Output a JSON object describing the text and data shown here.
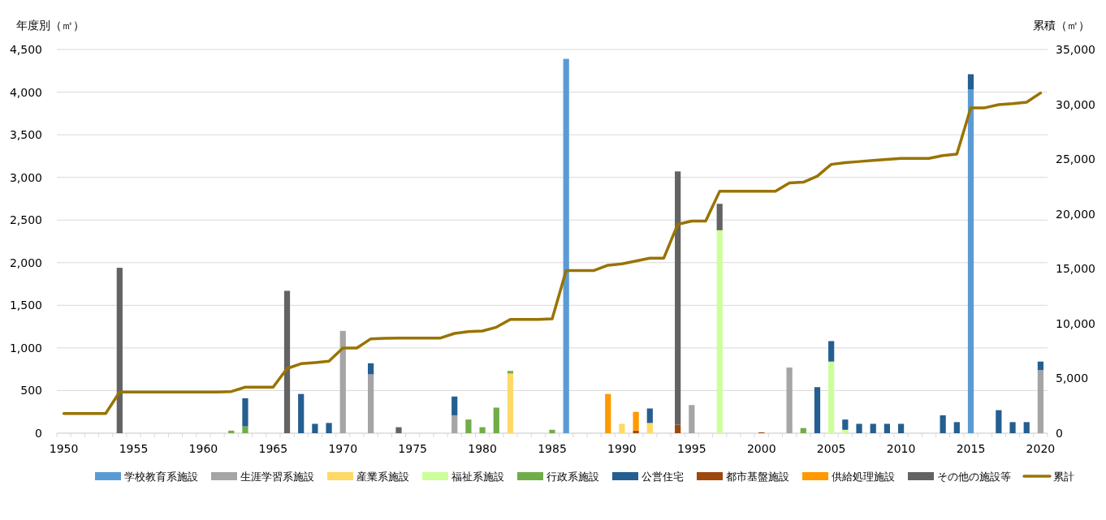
{
  "chart_data": {
    "type": "bar",
    "stacked": true,
    "ylabel": "年度別（㎡）",
    "y2label": "累積（㎡）",
    "categories": [
      "1950",
      null,
      null,
      null,
      null,
      "1955",
      null,
      null,
      null,
      null,
      "1960",
      null,
      null,
      null,
      null,
      "1965",
      null,
      null,
      null,
      null,
      "1970",
      null,
      null,
      null,
      null,
      "1975",
      null,
      null,
      null,
      null,
      "1980",
      null,
      null,
      null,
      null,
      "1985",
      null,
      null,
      null,
      null,
      "1990",
      null,
      null,
      null,
      null,
      "1995",
      null,
      null,
      null,
      null,
      "2000",
      null,
      null,
      null,
      null,
      "2005",
      null,
      null,
      null,
      null,
      "2010",
      null,
      null,
      null,
      null,
      "2015",
      null,
      null,
      null,
      null,
      "2020"
    ],
    "ylim": [
      0,
      4500
    ],
    "yticks": [
      0,
      {
        "value": 500,
        "label": "500"
      },
      {
        "value": 1000,
        "label": "1,000"
      },
      {
        "value": 1500,
        "label": "1,500"
      },
      {
        "value": 2000,
        "label": "2,000"
      },
      {
        "value": 2500,
        "label": "2,500"
      },
      {
        "value": 3000,
        "label": "3,000"
      },
      {
        "value": 3500,
        "label": "3,500"
      },
      {
        "value": 4000,
        "label": "4,000"
      },
      {
        "value": 4500,
        "label": "4,500"
      }
    ],
    "y2lim": [
      0,
      35000
    ],
    "y2ticks": [
      0,
      {
        "value": 5000,
        "label": "5,000"
      },
      {
        "value": 10000,
        "label": "10,000"
      },
      {
        "value": 15000,
        "label": "15,000"
      },
      {
        "value": 20000,
        "label": "20,000"
      },
      {
        "value": 25000,
        "label": "25,000"
      },
      {
        "value": 30000,
        "label": "30,000"
      },
      {
        "value": 35000,
        "label": "35,000"
      }
    ],
    "grid": "y",
    "legend": "bottom",
    "series": [
      {
        "name": "学校教育系施設",
        "color": "#5b9bd5",
        "values": [
          null,
          null,
          null,
          null,
          null,
          null,
          null,
          null,
          null,
          null,
          null,
          null,
          null,
          null,
          null,
          null,
          null,
          null,
          null,
          null,
          null,
          null,
          null,
          null,
          null,
          null,
          null,
          null,
          null,
          null,
          null,
          null,
          null,
          null,
          null,
          null,
          4390,
          null,
          null,
          null,
          null,
          null,
          null,
          null,
          null,
          null,
          null,
          null,
          null,
          null,
          null,
          null,
          null,
          null,
          null,
          null,
          null,
          null,
          null,
          null,
          null,
          null,
          null,
          null,
          null,
          4030,
          null,
          null,
          null,
          null,
          null
        ]
      },
      {
        "name": "生涯学習系施設",
        "color": "#a5a5a5",
        "values": [
          null,
          null,
          null,
          null,
          null,
          null,
          null,
          null,
          null,
          null,
          null,
          null,
          null,
          null,
          null,
          null,
          null,
          null,
          null,
          null,
          1200,
          null,
          690,
          null,
          null,
          null,
          null,
          null,
          210,
          null,
          null,
          null,
          null,
          null,
          null,
          null,
          null,
          null,
          null,
          null,
          null,
          null,
          null,
          null,
          null,
          330,
          null,
          null,
          null,
          null,
          null,
          null,
          770,
          null,
          null,
          null,
          null,
          null,
          null,
          null,
          null,
          null,
          null,
          null,
          null,
          null,
          null,
          null,
          null,
          null,
          740
        ]
      },
      {
        "name": "産業系施設",
        "color": "#ffd966",
        "values": [
          null,
          null,
          null,
          null,
          null,
          null,
          null,
          null,
          null,
          null,
          null,
          null,
          null,
          null,
          null,
          null,
          null,
          null,
          null,
          null,
          null,
          null,
          null,
          null,
          null,
          null,
          null,
          null,
          null,
          null,
          null,
          null,
          700,
          null,
          null,
          null,
          null,
          null,
          null,
          null,
          110,
          null,
          120,
          null,
          null,
          null,
          null,
          null,
          null,
          null,
          null,
          null,
          null,
          null,
          null,
          null,
          null,
          null,
          null,
          null,
          null,
          null,
          null,
          null,
          null,
          null,
          null,
          null,
          null,
          null,
          null
        ]
      },
      {
        "name": "福祉系施設",
        "color": "#ccff99",
        "values": [
          null,
          null,
          null,
          null,
          null,
          null,
          null,
          null,
          null,
          null,
          null,
          null,
          null,
          null,
          null,
          null,
          null,
          null,
          null,
          null,
          null,
          null,
          null,
          null,
          null,
          null,
          null,
          null,
          null,
          null,
          null,
          null,
          null,
          null,
          null,
          null,
          null,
          null,
          null,
          null,
          null,
          null,
          null,
          null,
          null,
          null,
          null,
          2380,
          null,
          null,
          null,
          null,
          null,
          null,
          null,
          840,
          40,
          null,
          null,
          null,
          null,
          null,
          null,
          null,
          null,
          null,
          null,
          null,
          null,
          null,
          null
        ]
      },
      {
        "name": "行政系施設",
        "color": "#70ad47",
        "values": [
          null,
          null,
          null,
          null,
          null,
          null,
          null,
          null,
          null,
          null,
          null,
          null,
          30,
          80,
          null,
          null,
          null,
          null,
          null,
          null,
          null,
          null,
          null,
          null,
          null,
          null,
          null,
          null,
          null,
          160,
          70,
          300,
          30,
          null,
          null,
          40,
          null,
          null,
          null,
          null,
          null,
          null,
          null,
          null,
          null,
          null,
          null,
          null,
          null,
          null,
          null,
          null,
          null,
          60,
          null,
          null,
          null,
          null,
          null,
          null,
          null,
          null,
          null,
          null,
          null,
          null,
          null,
          null,
          null,
          null,
          null
        ]
      },
      {
        "name": "公営住宅",
        "color": "#255e91",
        "values": [
          null,
          null,
          null,
          null,
          null,
          null,
          null,
          null,
          null,
          null,
          null,
          null,
          null,
          330,
          null,
          null,
          null,
          460,
          110,
          120,
          null,
          null,
          130,
          null,
          null,
          null,
          null,
          null,
          220,
          null,
          null,
          null,
          null,
          null,
          null,
          null,
          null,
          null,
          null,
          null,
          null,
          null,
          170,
          null,
          null,
          null,
          null,
          null,
          null,
          null,
          null,
          null,
          null,
          null,
          540,
          240,
          120,
          110,
          110,
          110,
          110,
          null,
          null,
          210,
          130,
          180,
          null,
          270,
          130,
          130,
          100
        ]
      },
      {
        "name": "都市基盤施設",
        "color": "#9e480e",
        "values": [
          null,
          null,
          null,
          null,
          null,
          null,
          null,
          null,
          null,
          null,
          null,
          null,
          null,
          null,
          null,
          null,
          null,
          null,
          null,
          null,
          null,
          null,
          null,
          null,
          null,
          null,
          null,
          null,
          null,
          null,
          null,
          null,
          null,
          null,
          null,
          null,
          null,
          null,
          null,
          null,
          null,
          30,
          null,
          null,
          100,
          null,
          null,
          null,
          null,
          null,
          10,
          null,
          null,
          null,
          null,
          null,
          null,
          null,
          null,
          null,
          null,
          null,
          null,
          null,
          null,
          null,
          null,
          null,
          null,
          null,
          null
        ]
      },
      {
        "name": "供給処理施設",
        "color": "#ff9900",
        "values": [
          null,
          null,
          null,
          null,
          null,
          null,
          null,
          null,
          null,
          null,
          null,
          null,
          null,
          null,
          null,
          null,
          null,
          null,
          null,
          null,
          null,
          null,
          null,
          null,
          null,
          null,
          null,
          null,
          null,
          null,
          null,
          null,
          null,
          null,
          null,
          null,
          null,
          null,
          null,
          460,
          null,
          220,
          null,
          null,
          null,
          null,
          null,
          null,
          null,
          null,
          null,
          null,
          null,
          null,
          null,
          null,
          null,
          null,
          null,
          null,
          null,
          null,
          null,
          null,
          null,
          null,
          null,
          null,
          null,
          null,
          null
        ]
      },
      {
        "name": "その他の施設等",
        "color": "#636363",
        "values": [
          null,
          null,
          null,
          null,
          1940,
          null,
          null,
          null,
          null,
          null,
          null,
          null,
          null,
          null,
          null,
          null,
          1670,
          null,
          null,
          null,
          null,
          null,
          null,
          null,
          70,
          null,
          null,
          null,
          null,
          null,
          null,
          null,
          null,
          null,
          null,
          null,
          null,
          null,
          null,
          null,
          null,
          null,
          null,
          null,
          2970,
          null,
          null,
          310,
          null,
          null,
          null,
          null,
          null,
          null,
          null,
          null,
          null,
          null,
          null,
          null,
          null,
          null,
          null,
          null,
          null,
          null,
          null,
          null,
          null,
          null,
          null
        ]
      },
      {
        "name": "累計",
        "color": "#997300",
        "type": "line",
        "axis": "y2",
        "values": [
          1800,
          1800,
          1800,
          1800,
          3750,
          3750,
          3750,
          3750,
          3750,
          3750,
          3750,
          3750,
          3800,
          4200,
          4200,
          4200,
          5900,
          6340,
          6440,
          6560,
          7770,
          7770,
          8610,
          8650,
          8680,
          8680,
          8680,
          8680,
          9100,
          9270,
          9320,
          9670,
          10380,
          10380,
          10380,
          10430,
          14840,
          14840,
          14840,
          15320,
          15450,
          15710,
          15970,
          15970,
          19060,
          19350,
          19350,
          22060,
          22060,
          22060,
          22060,
          22060,
          22830,
          22900,
          23450,
          24520,
          24680,
          24780,
          24880,
          24970,
          25060,
          25060,
          25060,
          25320,
          25450,
          29680,
          29680,
          29970,
          30060,
          30190,
          31030
        ]
      }
    ]
  }
}
